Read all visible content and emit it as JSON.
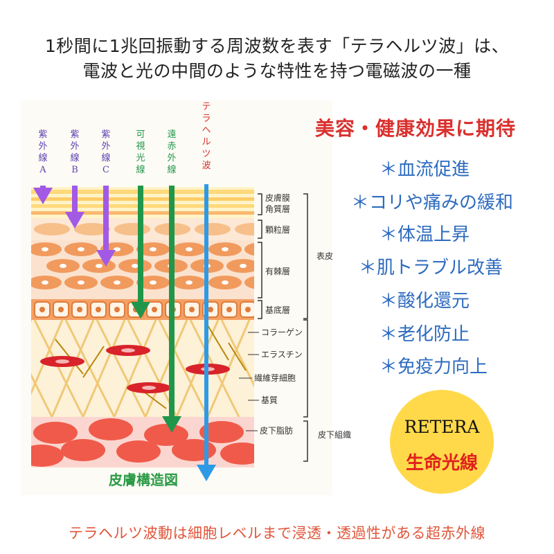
{
  "header": {
    "line1": "1秒間に1兆回振動する周波数を表す「テラヘルツ波」は、",
    "line2": "電波と光の中間のような特性を持つ電磁波の一種"
  },
  "diagram": {
    "title": "皮膚構造図",
    "rays": [
      {
        "label": "紫外線A",
        "chars": [
          "紫",
          "外",
          "線",
          "A"
        ],
        "color": "#a259e6"
      },
      {
        "label": "紫外線B",
        "chars": [
          "紫",
          "外",
          "線",
          "B"
        ],
        "color": "#a259e6"
      },
      {
        "label": "紫外線C",
        "chars": [
          "紫",
          "外",
          "線",
          "C"
        ],
        "color": "#a259e6"
      },
      {
        "label": "可視光線",
        "chars": [
          "可",
          "視",
          "光",
          "線"
        ],
        "color": "#20964a"
      },
      {
        "label": "遠赤外線",
        "chars": [
          "遠",
          "赤",
          "外",
          "線"
        ],
        "color": "#20964a"
      },
      {
        "label": "テラヘルツ波",
        "chars": [
          "テ",
          "ラ",
          "ヘ",
          "ル",
          "ツ",
          "波"
        ],
        "color": "#2e9ae6"
      }
    ],
    "layers": {
      "stratum_corneum": "皮膚膜",
      "stratum_corneum2": "角質層",
      "granular": "顆粒層",
      "spinous": "有棘層",
      "basal": "基底層",
      "collagen": "コラーゲン",
      "elastin": "エラスチン",
      "fibroblast": "繊維芽細胞",
      "matrix": "基質",
      "fat": "皮下脂肪"
    },
    "groups": {
      "epidermis": "表皮",
      "subcutaneous": "皮下組織"
    }
  },
  "benefits": {
    "title": "美容・健康効果に期待",
    "items": [
      "＊血流促進",
      "＊コリや痛みの緩和",
      "＊体温上昇",
      "＊肌トラブル改善",
      "＊酸化還元",
      "＊老化防止",
      "＊免疫力向上"
    ]
  },
  "badge": {
    "brand": "RETERA",
    "subtitle": "生命光線"
  },
  "footer": {
    "text": "テラヘルツ波動は細胞レベルまで浸透・透過性がある超赤外線"
  },
  "colors": {
    "uv": "#a259e6",
    "green": "#20964a",
    "terahertz": "#2e9ae6",
    "accent_red": "#d9302e",
    "benefit_blue": "#2d6bbf",
    "badge_yellow": "#ffd94a"
  }
}
